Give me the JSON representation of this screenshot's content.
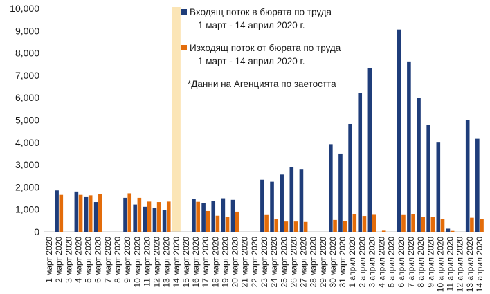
{
  "chart_data": {
    "type": "bar",
    "ylim": [
      0,
      10000
    ],
    "yticks": [
      "0",
      "1,000",
      "2,000",
      "3,000",
      "4,000",
      "5,000",
      "6,000",
      "7,000",
      "8,000",
      "9,000",
      "10,000"
    ],
    "highlight_category": "14 март 2020",
    "highlight_color": "#fbe5b6",
    "categories": [
      "1 март 2020",
      "2 март 2020",
      "3 март 2020",
      "4 март 2020",
      "5 март 2020",
      "6 март 2020",
      "7 март 2020",
      "8 март 2020",
      "9 март 2020",
      "10 март 2020",
      "11 март 2020",
      "12 март 2020",
      "13 март 2020",
      "14 март 2020",
      "15 март 2020",
      "16 март 2020",
      "17 март 2020",
      "18 март 2020",
      "19 март 2020",
      "20 март 2020",
      "21 март 2020",
      "22 март 2020",
      "23 март 2020",
      "24 март 2020",
      "25 март 2020",
      "26 март 2020",
      "27 март 2020",
      "28 март 2020",
      "29 март 2020",
      "30 март 2020",
      "31 март 2020",
      "1 април 2020",
      "2 април 2020",
      "3 април 2020",
      "4 април 2020",
      "5 април 2020",
      "6 април 2020",
      "7 април 2020",
      "8 април 2020",
      "9 април 2020",
      "10 април 2020",
      "11 април 2020",
      "12 април 2020",
      "13 април 2020",
      "14 април 2020"
    ],
    "series": [
      {
        "name": "Входящ поток в бюрата по труда",
        "name_line2": "1 март - 14 април 2020 г.",
        "color": "#1f3d7a",
        "values": [
          0,
          1850,
          0,
          1800,
          1550,
          1330,
          0,
          0,
          1520,
          1220,
          1120,
          1080,
          980,
          0,
          0,
          1480,
          1300,
          1380,
          1500,
          1430,
          0,
          0,
          2330,
          2240,
          2560,
          2880,
          2780,
          0,
          0,
          3920,
          3500,
          4830,
          6200,
          7330,
          0,
          0,
          9050,
          7620,
          5980,
          4780,
          4020,
          140,
          0,
          5000,
          4160
        ]
      },
      {
        "name": "Изходящ поток от бюрата по труда",
        "name_line2": "1 март - 14 април 2020 г.",
        "color": "#e36c0a",
        "values": [
          0,
          1650,
          0,
          1650,
          1630,
          1700,
          0,
          0,
          1720,
          1520,
          1350,
          1330,
          1350,
          0,
          0,
          1340,
          930,
          720,
          650,
          900,
          0,
          0,
          750,
          580,
          460,
          460,
          440,
          0,
          0,
          530,
          490,
          800,
          710,
          760,
          50,
          0,
          750,
          780,
          660,
          650,
          580,
          40,
          0,
          630,
          560
        ]
      }
    ],
    "annotation": "*Данни на Агенцията по заетостта"
  }
}
